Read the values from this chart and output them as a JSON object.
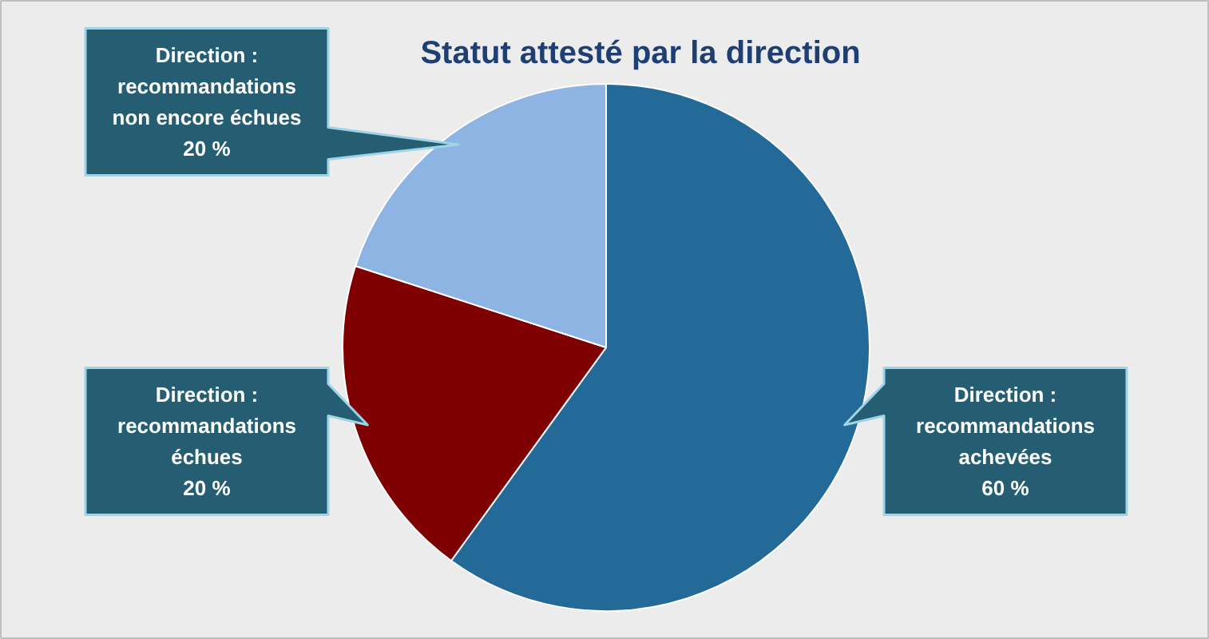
{
  "chart_data": {
    "type": "pie",
    "title": "Statut attesté par la direction",
    "categories": [
      "Direction : recommandations achevées",
      "Direction : recommandations échues",
      "Direction : recommandations non encore échues"
    ],
    "values": [
      60,
      20,
      20
    ],
    "colors": [
      "#246a98",
      "#7f0000",
      "#8eb4e3"
    ],
    "value_labels": [
      "60 %",
      "20 %",
      "20 %"
    ]
  }
}
